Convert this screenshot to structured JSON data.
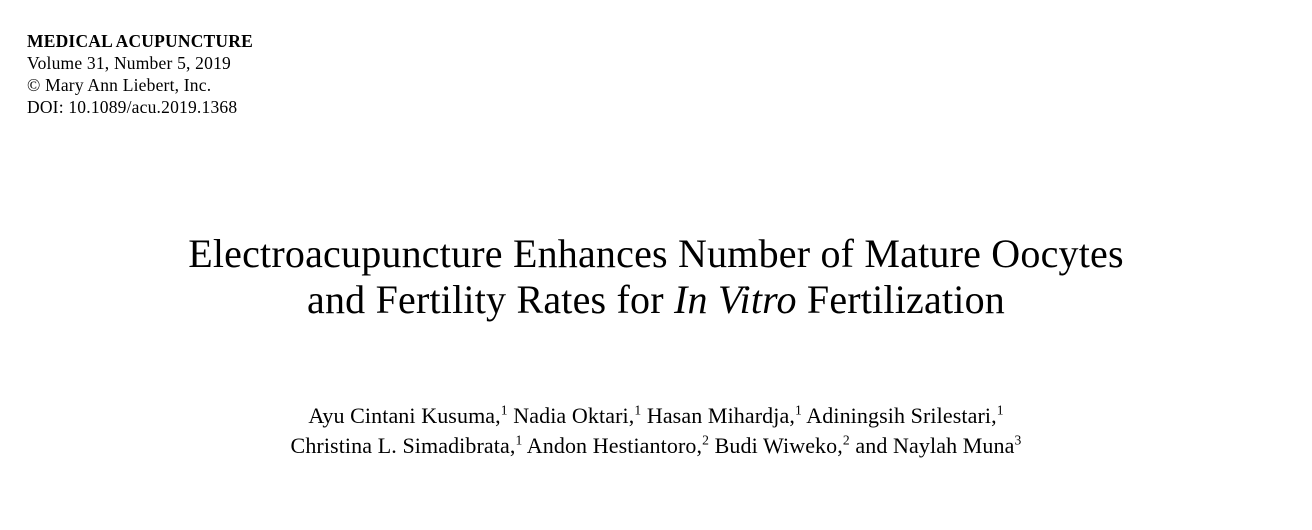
{
  "colors": {
    "background": "#ffffff",
    "text": "#000000"
  },
  "journal": {
    "name": "MEDICAL ACUPUNCTURE",
    "volume_line": "Volume 31, Number 5, 2019",
    "copyright_line": "© Mary Ann Liebert, Inc.",
    "doi_line": "DOI: 10.1089/acu.2019.1368"
  },
  "article": {
    "title": {
      "line1": "Electroacupuncture Enhances Number of Mature Oocytes",
      "line2_prefix": "and Fertility Rates for ",
      "line2_italic": "In Vitro",
      "line2_suffix": " Fertilization"
    },
    "authors": {
      "line1": [
        {
          "name": "Ayu Cintani Kusuma,",
          "affiliation_sup": "1"
        },
        {
          "name": " Nadia Oktari,",
          "affiliation_sup": "1"
        },
        {
          "name": " Hasan Mihardja,",
          "affiliation_sup": "1"
        },
        {
          "name": " Adiningsih Srilestari,",
          "affiliation_sup": "1"
        }
      ],
      "line2": [
        {
          "name": "Christina L. Simadibrata,",
          "affiliation_sup": "1"
        },
        {
          "name": " Andon Hestiantoro,",
          "affiliation_sup": "2"
        },
        {
          "name": " Budi Wiweko,",
          "affiliation_sup": "2"
        },
        {
          "name": " and Naylah Muna",
          "affiliation_sup": "3"
        }
      ]
    }
  }
}
